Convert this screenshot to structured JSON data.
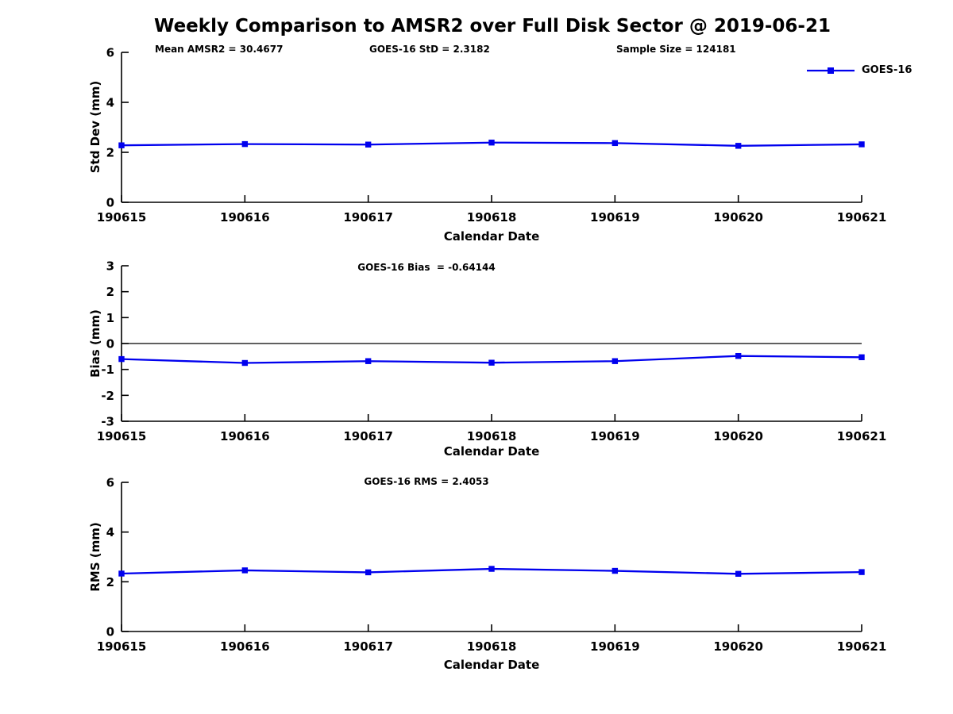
{
  "figure": {
    "title": "Weekly Comparison to AMSR2 over Full Disk Sector @ 2019-06-21",
    "background_color": "#ffffff",
    "line_color": "#0000ee",
    "axis_color": "#000000",
    "text_color": "#000000"
  },
  "chart_data": [
    {
      "type": "line",
      "panel": "Std Dev",
      "categories": [
        "190615",
        "190616",
        "190617",
        "190618",
        "190619",
        "190620",
        "190621"
      ],
      "series": [
        {
          "name": "GOES-16",
          "values": [
            2.28,
            2.33,
            2.31,
            2.39,
            2.37,
            2.26,
            2.32
          ]
        }
      ],
      "annotations": [
        "Mean AMSR2 = 30.4677",
        "GOES-16 StD = 2.3182",
        "Sample Size = 124181"
      ],
      "legend": {
        "label": "GOES-16",
        "position": "top-right",
        "box": "off"
      },
      "xlabel": "Calendar Date",
      "ylabel": "Std Dev (mm)",
      "ylim": [
        0,
        6
      ],
      "yticks": [
        0,
        2,
        4,
        6
      ],
      "zero_line": false,
      "grid": false,
      "marker": "square"
    },
    {
      "type": "line",
      "panel": "Bias",
      "title": "GOES-16 Bias  = -0.64144",
      "categories": [
        "190615",
        "190616",
        "190617",
        "190618",
        "190619",
        "190620",
        "190621"
      ],
      "series": [
        {
          "name": "GOES-16",
          "values": [
            -0.6,
            -0.75,
            -0.68,
            -0.74,
            -0.68,
            -0.48,
            -0.53
          ]
        }
      ],
      "xlabel": "Calendar Date",
      "ylabel": "Bias (mm)",
      "ylim": [
        -3,
        3
      ],
      "yticks": [
        -3,
        -2,
        -1,
        0,
        1,
        2,
        3
      ],
      "zero_line": true,
      "grid": false,
      "marker": "square"
    },
    {
      "type": "line",
      "panel": "RMS",
      "title": "GOES-16 RMS = 2.4053",
      "categories": [
        "190615",
        "190616",
        "190617",
        "190618",
        "190619",
        "190620",
        "190621"
      ],
      "series": [
        {
          "name": "GOES-16",
          "values": [
            2.33,
            2.46,
            2.38,
            2.52,
            2.44,
            2.32,
            2.39
          ]
        }
      ],
      "xlabel": "Calendar Date",
      "ylabel": "RMS (mm)",
      "ylim": [
        0,
        6
      ],
      "yticks": [
        0,
        2,
        4,
        6
      ],
      "zero_line": false,
      "grid": false,
      "marker": "square"
    }
  ]
}
